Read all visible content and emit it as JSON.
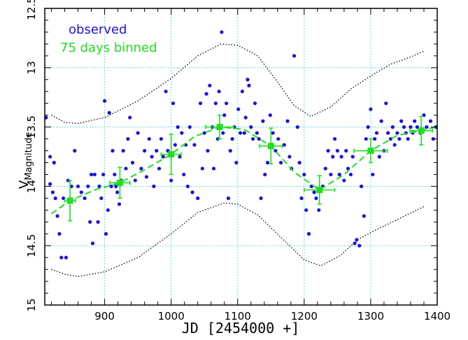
{
  "chart_data": {
    "type": "scatter",
    "xlabel": "JD [2454000 +]",
    "ylabel": "V",
    "ylabel_sub": "Magnitude",
    "xlim": [
      810,
      1400
    ],
    "ylim": [
      12.5,
      15.0
    ],
    "y_inverted": true,
    "xticks": [
      900,
      1000,
      1100,
      1200,
      1300,
      1400
    ],
    "yticks": [
      12.5,
      13,
      13.5,
      14,
      14.5,
      15
    ],
    "grid": true,
    "legend": [
      "observed",
      "75 days binned"
    ],
    "legend_position": "top-left",
    "colors": {
      "observed": "#1a10e0",
      "binned": "#22dd22",
      "envelope": "#000000",
      "grid": "#66dddd"
    },
    "series": [
      {
        "name": "observed",
        "type": "scatter",
        "points": [
          [
            812,
            13.42
          ],
          [
            818,
            13.75
          ],
          [
            818,
            13.98
          ],
          [
            822,
            14.05
          ],
          [
            824,
            13.8
          ],
          [
            826,
            14.1
          ],
          [
            829,
            14.25
          ],
          [
            832,
            14.4
          ],
          [
            835,
            14.6
          ],
          [
            838,
            14.1
          ],
          [
            842,
            14.6
          ],
          [
            845,
            13.95
          ],
          [
            850,
            14.0
          ],
          [
            855,
            13.7
          ],
          [
            860,
            14.0
          ],
          [
            865,
            14.05
          ],
          [
            870,
            14.1
          ],
          [
            875,
            14.0
          ],
          [
            878,
            14.3
          ],
          [
            880,
            13.9
          ],
          [
            882,
            14.48
          ],
          [
            885,
            13.9
          ],
          [
            890,
            14.3
          ],
          [
            892,
            14.0
          ],
          [
            895,
            14.1
          ],
          [
            898,
            13.9
          ],
          [
            900,
            13.28
          ],
          [
            902,
            14.4
          ],
          [
            905,
            14.2
          ],
          [
            907,
            13.38
          ],
          [
            910,
            14.0
          ],
          [
            912,
            13.7
          ],
          [
            915,
            13.9
          ],
          [
            917,
            14.0
          ],
          [
            919,
            14.05
          ],
          [
            922,
            14.15
          ],
          [
            925,
            13.95
          ],
          [
            928,
            13.7
          ],
          [
            932,
            13.85
          ],
          [
            935,
            13.6
          ],
          [
            938,
            13.42
          ],
          [
            942,
            13.8
          ],
          [
            946,
            13.95
          ],
          [
            950,
            13.55
          ],
          [
            955,
            13.85
          ],
          [
            960,
            13.7
          ],
          [
            963,
            13.92
          ],
          [
            967,
            13.6
          ],
          [
            971,
            13.75
          ],
          [
            974,
            14.0
          ],
          [
            978,
            13.7
          ],
          [
            982,
            13.85
          ],
          [
            985,
            13.6
          ],
          [
            988,
            13.75
          ],
          [
            992,
            13.2
          ],
          [
            995,
            13.7
          ],
          [
            1000,
            13.95
          ],
          [
            1003,
            13.3
          ],
          [
            1006,
            13.65
          ],
          [
            1010,
            13.5
          ],
          [
            1013,
            13.75
          ],
          [
            1016,
            13.55
          ],
          [
            1019,
            13.9
          ],
          [
            1022,
            13.65
          ],
          [
            1025,
            14.0
          ],
          [
            1028,
            13.5
          ],
          [
            1032,
            14.05
          ],
          [
            1035,
            13.65
          ],
          [
            1040,
            14.1
          ],
          [
            1044,
            13.3
          ],
          [
            1047,
            13.85
          ],
          [
            1050,
            13.55
          ],
          [
            1053,
            13.22
          ],
          [
            1055,
            13.7
          ],
          [
            1058,
            13.15
          ],
          [
            1062,
            13.5
          ],
          [
            1064,
            13.85
          ],
          [
            1067,
            13.3
          ],
          [
            1070,
            13.6
          ],
          [
            1072,
            13.2
          ],
          [
            1076,
            12.7
          ],
          [
            1078,
            13.55
          ],
          [
            1080,
            13.4
          ],
          [
            1083,
            13.3
          ],
          [
            1086,
            14.1
          ],
          [
            1089,
            13.7
          ],
          [
            1092,
            13.6
          ],
          [
            1095,
            13.5
          ],
          [
            1098,
            13.8
          ],
          [
            1101,
            13.35
          ],
          [
            1104,
            13.55
          ],
          [
            1107,
            13.2
          ],
          [
            1110,
            13.55
          ],
          [
            1112,
            13.42
          ],
          [
            1115,
            13.1
          ],
          [
            1117,
            13.15
          ],
          [
            1120,
            13.5
          ],
          [
            1123,
            13.6
          ],
          [
            1126,
            13.3
          ],
          [
            1129,
            13.55
          ],
          [
            1132,
            13.6
          ],
          [
            1135,
            14.1
          ],
          [
            1138,
            13.45
          ],
          [
            1141,
            13.9
          ],
          [
            1145,
            13.8
          ],
          [
            1149,
            13.4
          ],
          [
            1153,
            13.55
          ],
          [
            1157,
            13.7
          ],
          [
            1161,
            13.6
          ],
          [
            1165,
            13.8
          ],
          [
            1170,
            13.65
          ],
          [
            1175,
            13.45
          ],
          [
            1178,
            13.75
          ],
          [
            1181,
            13.85
          ],
          [
            1185,
            12.9
          ],
          [
            1190,
            13.5
          ],
          [
            1193,
            13.8
          ],
          [
            1196,
            14.1
          ],
          [
            1200,
            13.9
          ],
          [
            1203,
            14.2
          ],
          [
            1207,
            14.4
          ],
          [
            1211,
            14.0
          ],
          [
            1215,
            14.05
          ],
          [
            1218,
            14.1
          ],
          [
            1222,
            14.2
          ],
          [
            1228,
            14.0
          ],
          [
            1232,
            13.85
          ],
          [
            1236,
            13.7
          ],
          [
            1240,
            13.9
          ],
          [
            1243,
            13.75
          ],
          [
            1246,
            13.6
          ],
          [
            1250,
            13.7
          ],
          [
            1253,
            13.9
          ],
          [
            1256,
            13.75
          ],
          [
            1260,
            13.95
          ],
          [
            1263,
            13.7
          ],
          [
            1266,
            13.85
          ],
          [
            1270,
            13.9
          ],
          [
            1273,
            13.75
          ],
          [
            1276,
            14.48
          ],
          [
            1279,
            14.45
          ],
          [
            1283,
            14.5
          ],
          [
            1286,
            14.0
          ],
          [
            1290,
            14.25
          ],
          [
            1293,
            13.6
          ],
          [
            1296,
            13.5
          ],
          [
            1300,
            13.35
          ],
          [
            1303,
            13.9
          ],
          [
            1306,
            13.6
          ],
          [
            1309,
            13.55
          ],
          [
            1313,
            13.75
          ],
          [
            1316,
            13.45
          ],
          [
            1320,
            13.7
          ],
          [
            1323,
            13.3
          ],
          [
            1326,
            13.55
          ],
          [
            1330,
            13.6
          ],
          [
            1333,
            13.5
          ],
          [
            1336,
            13.65
          ],
          [
            1340,
            13.55
          ],
          [
            1343,
            13.6
          ],
          [
            1346,
            13.45
          ],
          [
            1350,
            13.5
          ],
          [
            1353,
            13.55
          ],
          [
            1356,
            13.6
          ],
          [
            1360,
            13.5
          ],
          [
            1363,
            13.55
          ],
          [
            1366,
            13.45
          ],
          [
            1370,
            13.5
          ],
          [
            1375,
            13.55
          ],
          [
            1380,
            13.4
          ],
          [
            1384,
            13.5
          ],
          [
            1390,
            13.45
          ],
          [
            1394,
            13.6
          ],
          [
            1398,
            13.5
          ]
        ]
      },
      {
        "name": "75 days binned",
        "type": "errorbar",
        "points": [
          {
            "x": 848,
            "y": 14.12,
            "xerr": 8,
            "yerr": 0.17
          },
          {
            "x": 923,
            "y": 13.97,
            "xerr": 15,
            "yerr": 0.13
          },
          {
            "x": 1000,
            "y": 13.73,
            "xerr": 15,
            "yerr": 0.17
          },
          {
            "x": 1073,
            "y": 13.5,
            "xerr": 21,
            "yerr": 0.1
          },
          {
            "x": 1150,
            "y": 13.66,
            "xerr": 17,
            "yerr": 0.15
          },
          {
            "x": 1223,
            "y": 14.03,
            "xerr": 23,
            "yerr": 0.12
          },
          {
            "x": 1300,
            "y": 13.7,
            "xerr": 25,
            "yerr": 0.1
          },
          {
            "x": 1376,
            "y": 13.53,
            "xerr": 17,
            "yerr": 0.12
          }
        ]
      },
      {
        "name": "binned fit",
        "type": "line",
        "style": "dashed",
        "points": [
          [
            820,
            14.23
          ],
          [
            848,
            14.12
          ],
          [
            885,
            14.03
          ],
          [
            923,
            13.97
          ],
          [
            960,
            13.86
          ],
          [
            1000,
            13.73
          ],
          [
            1035,
            13.58
          ],
          [
            1073,
            13.5
          ],
          [
            1110,
            13.52
          ],
          [
            1150,
            13.66
          ],
          [
            1185,
            13.88
          ],
          [
            1223,
            14.03
          ],
          [
            1260,
            13.9
          ],
          [
            1300,
            13.7
          ],
          [
            1340,
            13.57
          ],
          [
            1376,
            13.53
          ],
          [
            1398,
            13.5
          ]
        ]
      },
      {
        "name": "upper envelope",
        "type": "line",
        "style": "dotted",
        "points": [
          [
            820,
            13.4
          ],
          [
            840,
            13.46
          ],
          [
            860,
            13.47
          ],
          [
            900,
            13.42
          ],
          [
            950,
            13.28
          ],
          [
            1000,
            13.09
          ],
          [
            1040,
            12.9
          ],
          [
            1075,
            12.8
          ],
          [
            1100,
            12.81
          ],
          [
            1130,
            12.9
          ],
          [
            1160,
            13.12
          ],
          [
            1185,
            13.32
          ],
          [
            1210,
            13.41
          ],
          [
            1240,
            13.33
          ],
          [
            1270,
            13.18
          ],
          [
            1300,
            13.07
          ],
          [
            1330,
            12.97
          ],
          [
            1360,
            12.91
          ],
          [
            1380,
            12.86
          ]
        ]
      },
      {
        "name": "lower envelope",
        "type": "line",
        "style": "dotted",
        "points": [
          [
            820,
            14.7
          ],
          [
            840,
            14.74
          ],
          [
            860,
            14.76
          ],
          [
            900,
            14.72
          ],
          [
            950,
            14.6
          ],
          [
            1000,
            14.4
          ],
          [
            1040,
            14.22
          ],
          [
            1080,
            14.14
          ],
          [
            1100,
            14.15
          ],
          [
            1130,
            14.24
          ],
          [
            1165,
            14.43
          ],
          [
            1200,
            14.62
          ],
          [
            1225,
            14.67
          ],
          [
            1255,
            14.58
          ],
          [
            1280,
            14.45
          ],
          [
            1310,
            14.36
          ],
          [
            1340,
            14.28
          ],
          [
            1380,
            14.17
          ]
        ]
      }
    ]
  }
}
